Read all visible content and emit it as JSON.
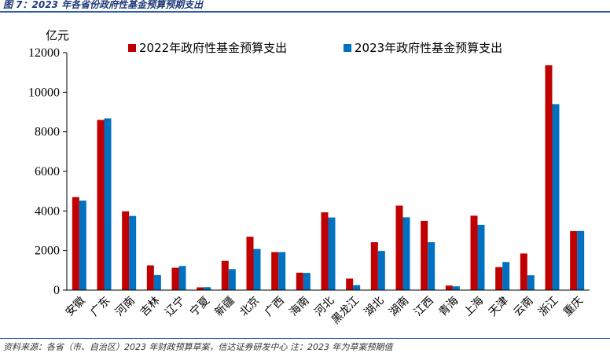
{
  "figure_title": "图 7：2023 年各省份政府性基金预算预期支出",
  "source_note": "资料来源：各省（市、自治区）2023 年财政预算草案，信达证券研发中心  注：2023 年为草案预期值",
  "colors": {
    "series_2022": "#c00000",
    "series_2023": "#0070c0",
    "accent": "#2d5ba8"
  },
  "chart_data": {
    "type": "bar",
    "title": "",
    "ylabel": "亿元",
    "xlabel": "",
    "ylim": [
      0,
      12000
    ],
    "yticks": [
      0,
      2000,
      4000,
      6000,
      8000,
      10000,
      12000
    ],
    "legend_position": "top",
    "grid": false,
    "categories": [
      "安徽",
      "广东",
      "河南",
      "吉林",
      "辽宁",
      "宁夏",
      "新疆",
      "北京",
      "广西",
      "海南",
      "河北",
      "黑龙江",
      "湖北",
      "湖南",
      "江西",
      "青海",
      "上海",
      "天津",
      "云南",
      "浙江",
      "重庆"
    ],
    "series": [
      {
        "name": "2022年政府性基金预算支出",
        "color": "#c00000",
        "values": [
          4700,
          8600,
          3980,
          1250,
          1130,
          140,
          1480,
          2700,
          1920,
          880,
          3930,
          580,
          2420,
          4270,
          3500,
          230,
          3760,
          1160,
          1850,
          11360,
          2980
        ]
      },
      {
        "name": "2023年政府性基金预算支出",
        "color": "#0070c0",
        "values": [
          4520,
          8680,
          3750,
          760,
          1220,
          150,
          1060,
          2080,
          1920,
          870,
          3670,
          250,
          1980,
          3680,
          2420,
          190,
          3300,
          1420,
          750,
          9400,
          2990
        ]
      }
    ]
  }
}
